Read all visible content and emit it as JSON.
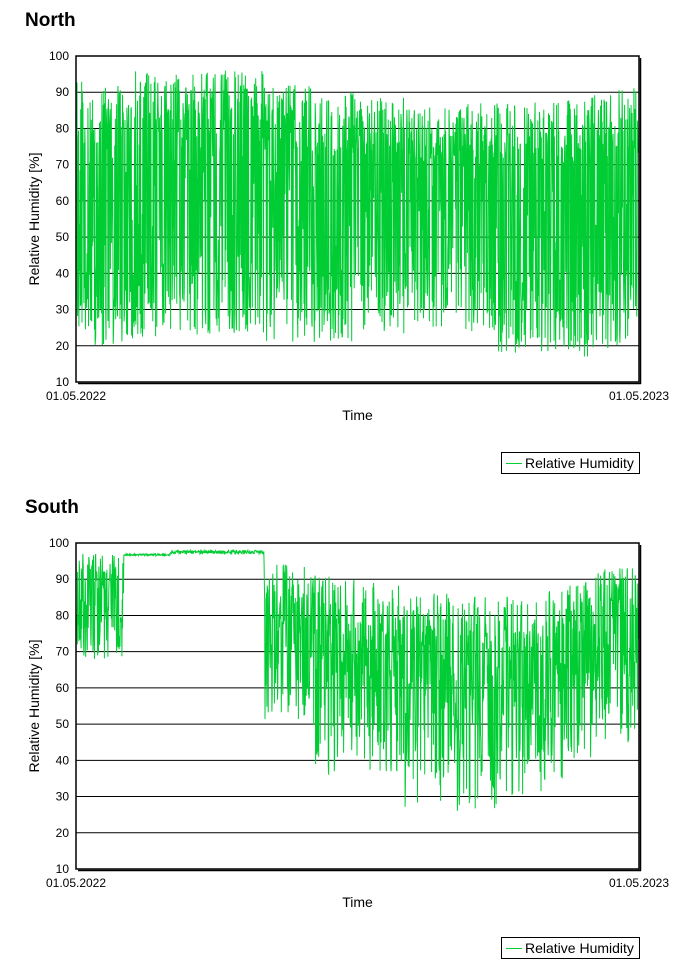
{
  "chart_data": [
    {
      "type": "line",
      "title": "North",
      "xlabel": "Time",
      "ylabel": "Relative Humidity [%]",
      "ylim": [
        10,
        100
      ],
      "yticks": [
        10,
        20,
        30,
        40,
        50,
        60,
        70,
        80,
        90,
        100
      ],
      "xticks": [
        "01.05.2022",
        "01.05.2023"
      ],
      "grid": "horizontal",
      "legend_placement": "bottom-right",
      "series": [
        {
          "name": "Relative Humidity",
          "color": "#00cc33",
          "x_start": "01.05.2022",
          "x_end": "01.05.2023",
          "envelope_monthly": [
            {
              "month": "May",
              "min": 20,
              "max": 93
            },
            {
              "month": "Jun",
              "min": 22,
              "max": 96
            },
            {
              "month": "Jul",
              "min": 23,
              "max": 96
            },
            {
              "month": "Aug",
              "min": 23,
              "max": 96
            },
            {
              "month": "Sep",
              "min": 21,
              "max": 92
            },
            {
              "month": "Oct",
              "min": 21,
              "max": 90
            },
            {
              "month": "Nov",
              "min": 23,
              "max": 89
            },
            {
              "month": "Dec",
              "min": 25,
              "max": 86
            },
            {
              "month": "Jan",
              "min": 24,
              "max": 87
            },
            {
              "month": "Feb",
              "min": 18,
              "max": 88
            },
            {
              "month": "Mar",
              "min": 17,
              "max": 88
            },
            {
              "month": "Apr",
              "min": 19,
              "max": 92
            }
          ]
        }
      ]
    },
    {
      "type": "line",
      "title": "South",
      "xlabel": "Time",
      "ylabel": "Relative Humidity [%]",
      "ylim": [
        10,
        100
      ],
      "yticks": [
        10,
        20,
        30,
        40,
        50,
        60,
        70,
        80,
        90,
        100
      ],
      "xticks": [
        "01.05.2022",
        "01.05.2023"
      ],
      "grid": "horizontal",
      "legend_placement": "bottom-right",
      "series": [
        {
          "name": "Relative Humidity",
          "color": "#00cc33",
          "x_start": "01.05.2022",
          "x_end": "01.05.2023",
          "envelope_monthly": [
            {
              "month": "May",
              "min": 68,
              "max": 97
            },
            {
              "month": "Jun",
              "min": 96,
              "max": 97
            },
            {
              "month": "Jul",
              "min": 96,
              "max": 98
            },
            {
              "month": "Aug",
              "min": 96,
              "max": 98
            },
            {
              "month": "Sep",
              "min": 51,
              "max": 94
            },
            {
              "month": "Oct",
              "min": 36,
              "max": 91
            },
            {
              "month": "Nov",
              "min": 37,
              "max": 89
            },
            {
              "month": "Dec",
              "min": 27,
              "max": 86
            },
            {
              "month": "Jan",
              "min": 26,
              "max": 85
            },
            {
              "month": "Feb",
              "min": 28,
              "max": 85
            },
            {
              "month": "Mar",
              "min": 34,
              "max": 89
            },
            {
              "month": "Apr",
              "min": 45,
              "max": 93
            }
          ]
        }
      ]
    }
  ]
}
